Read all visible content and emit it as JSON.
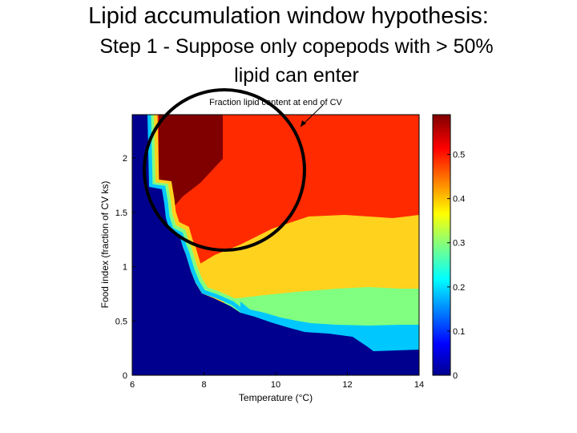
{
  "slide": {
    "title": "Lipid accumulation window hypothesis:",
    "subtitle": "Step 1 - Suppose only copepods with > 50% lipid can enter"
  },
  "chart_data": {
    "type": "heatmap",
    "title": "Fraction lipid content at end of CV",
    "xlabel": "Temperature (°C)",
    "ylabel": "Food index (fraction of CV ks)",
    "xlim": [
      6,
      14
    ],
    "ylim": [
      0,
      2.4
    ],
    "xticks": [
      6,
      8,
      10,
      12,
      14
    ],
    "yticks": [
      0,
      0.5,
      1,
      1.5,
      2
    ],
    "colorbar": {
      "range": [
        0,
        0.59
      ],
      "ticks": [
        0,
        0.1,
        0.2,
        0.3,
        0.4,
        0.5
      ],
      "colormap": "jet"
    },
    "regions": [
      {
        "level": 0.0,
        "color": "#00008f",
        "label": "no lipid (dark blue)"
      },
      {
        "level": 0.15,
        "color": "#00c8ff",
        "label": "cyan band"
      },
      {
        "level": 0.25,
        "color": "#80ff80",
        "label": "green band"
      },
      {
        "level": 0.4,
        "color": "#ffd21e",
        "label": "yellow band"
      },
      {
        "level": 0.52,
        "color": "#ff2a00",
        "label": "red band"
      },
      {
        "level": 0.58,
        "color": "#800000",
        "label": "dark red band"
      }
    ],
    "grid": false,
    "annotation": "circle highlighting high-lipid region near 6.5-8.5 °C and food index 1.1-2.4"
  }
}
